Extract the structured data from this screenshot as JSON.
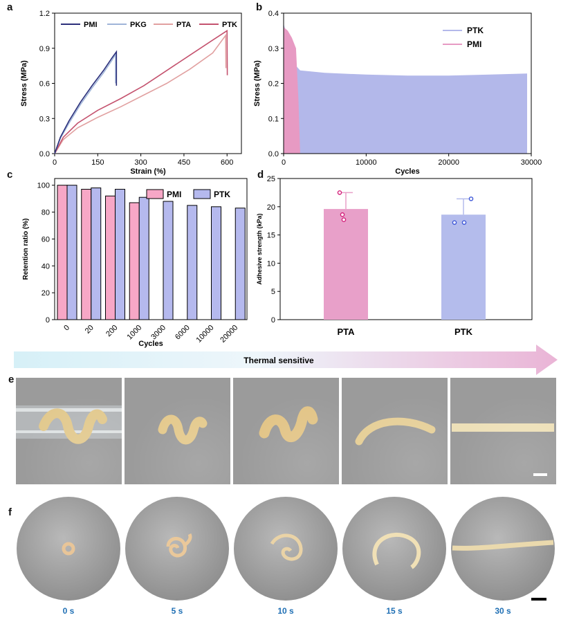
{
  "panel_labels": {
    "a": "a",
    "b": "b",
    "c": "c",
    "d": "d",
    "e": "e",
    "f": "f"
  },
  "arrow_label": "Thermal sensitive",
  "time_labels": [
    "0 s",
    "5 s",
    "10 s",
    "15 s",
    "30 s"
  ],
  "colors": {
    "PMI": "#2b2f7a",
    "PKG": "#9fb4d8",
    "PTA": "#e1a0a0",
    "PTK": "#c4526e",
    "bar_pmi": "#f7a7c6",
    "bar_ptk": "#b5b9ee",
    "area_ptk": "#b3b8ea",
    "area_pmi": "#e79ac3",
    "bar_pta_d": "#e8a0c9",
    "bar_ptk_d": "#b4bcec",
    "arrow_start": "#d6f0f7",
    "arrow_end": "#eab4d6",
    "time_label": "#1f6fb4"
  },
  "chart_data": [
    {
      "id": "a",
      "type": "line",
      "xlabel": "Strain (%)",
      "ylabel": "Stress (MPa)",
      "xlim": [
        0,
        650
      ],
      "ylim": [
        0,
        1.2
      ],
      "xticks": [
        "0",
        "150",
        "300",
        "450",
        "600"
      ],
      "xtick_values": [
        0,
        150,
        300,
        450,
        600
      ],
      "yticks": [
        "0.0",
        "0.3",
        "0.6",
        "0.9",
        "1.2"
      ],
      "ytick_values": [
        0,
        0.3,
        0.6,
        0.9,
        1.2
      ],
      "legend_position": "top",
      "series": [
        {
          "name": "PMI",
          "x": [
            0,
            20,
            50,
            90,
            130,
            170,
            200,
            215,
            215
          ],
          "y": [
            0,
            0.14,
            0.28,
            0.44,
            0.58,
            0.71,
            0.82,
            0.87,
            0.58
          ]
        },
        {
          "name": "PKG",
          "x": [
            0,
            20,
            50,
            90,
            130,
            170,
            200,
            212,
            212
          ],
          "y": [
            0,
            0.13,
            0.26,
            0.42,
            0.56,
            0.69,
            0.8,
            0.85,
            0.6
          ]
        },
        {
          "name": "PTA",
          "x": [
            0,
            30,
            80,
            150,
            230,
            310,
            390,
            470,
            550,
            595,
            596
          ],
          "y": [
            0,
            0.12,
            0.22,
            0.31,
            0.4,
            0.5,
            0.6,
            0.72,
            0.86,
            1.01,
            0.73
          ]
        },
        {
          "name": "PTK",
          "x": [
            0,
            30,
            80,
            150,
            230,
            310,
            390,
            470,
            550,
            600,
            601
          ],
          "y": [
            0,
            0.14,
            0.26,
            0.37,
            0.47,
            0.58,
            0.71,
            0.84,
            0.97,
            1.05,
            0.67
          ]
        }
      ]
    },
    {
      "id": "b",
      "type": "area",
      "xlabel": "Cycles",
      "ylabel": "Stress (MPa)",
      "xlim": [
        0,
        30000
      ],
      "ylim": [
        0,
        0.4
      ],
      "xticks": [
        "0",
        "10000",
        "20000",
        "30000"
      ],
      "xtick_values": [
        0,
        10000,
        20000,
        30000
      ],
      "yticks": [
        "0.0",
        "0.1",
        "0.2",
        "0.3",
        "0.4"
      ],
      "ytick_values": [
        0,
        0.1,
        0.2,
        0.3,
        0.4
      ],
      "legend_position": "top-right",
      "series": [
        {
          "name": "PTK",
          "x": [
            0,
            800,
            1500,
            2000,
            5000,
            10000,
            15000,
            20000,
            25000,
            29500
          ],
          "y": [
            0.37,
            0.3,
            0.25,
            0.237,
            0.23,
            0.225,
            0.222,
            0.222,
            0.225,
            0.228
          ]
        },
        {
          "name": "PMI",
          "x": [
            0,
            500,
            1000,
            1500,
            1800,
            2000
          ],
          "y": [
            0.36,
            0.35,
            0.33,
            0.3,
            0.15,
            0
          ]
        }
      ]
    },
    {
      "id": "c",
      "type": "bar",
      "xlabel": "Cycles",
      "ylabel": "Retention ratio (%)",
      "ylim": [
        0,
        105
      ],
      "yticks": [
        "0",
        "20",
        "40",
        "60",
        "80",
        "100"
      ],
      "ytick_values": [
        0,
        20,
        40,
        60,
        80,
        100
      ],
      "legend_position": "top-right",
      "categories": [
        "0",
        "20",
        "200",
        "1000",
        "3000",
        "6000",
        "10000",
        "20000"
      ],
      "series": [
        {
          "name": "PMI",
          "values": [
            100,
            97,
            92,
            87,
            null,
            null,
            null,
            null
          ]
        },
        {
          "name": "PTK",
          "values": [
            100,
            98,
            97,
            91,
            88,
            85,
            84,
            83
          ]
        }
      ]
    },
    {
      "id": "d",
      "type": "bar",
      "ylabel": "Adhesive strength (kPa)",
      "ylim": [
        0,
        25
      ],
      "yticks": [
        "0",
        "5",
        "10",
        "15",
        "20",
        "25"
      ],
      "ytick_values": [
        0,
        5,
        10,
        15,
        20,
        25
      ],
      "categories": [
        "PTA",
        "PTK"
      ],
      "values": [
        19.6,
        18.6
      ],
      "errors": [
        2.9,
        2.8
      ],
      "points": [
        [
          22.5,
          18.6,
          17.7
        ],
        [
          21.4,
          17.2,
          17.2
        ]
      ]
    }
  ]
}
